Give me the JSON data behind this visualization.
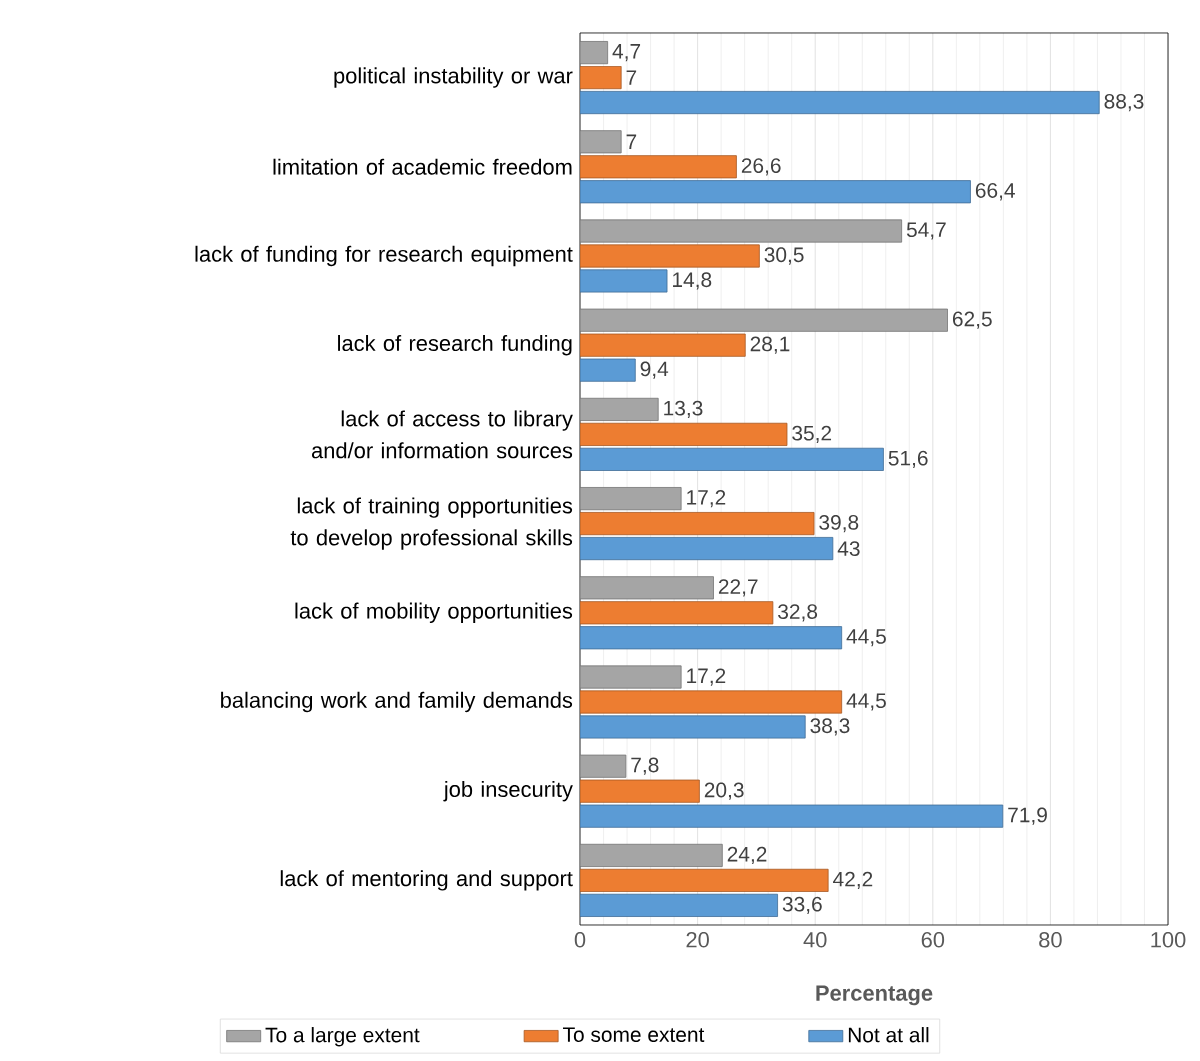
{
  "chart_data": {
    "type": "bar",
    "orientation": "horizontal",
    "categories": [
      "political instability or war",
      "limitation of academic freedom",
      "lack of funding for research equipment",
      "lack of research funding",
      "lack of access to library and/or information sources",
      "lack of training opportunities to develop professional skills",
      "lack of mobility opportunities",
      "balancing work and family demands",
      "job insecurity",
      "lack of mentoring and support"
    ],
    "series": [
      {
        "name": "To a large extent",
        "color": "#a5a5a5",
        "values": [
          4.7,
          7,
          54.7,
          62.5,
          13.3,
          17.2,
          22.7,
          17.2,
          7.8,
          24.2
        ],
        "value_labels": [
          "4,7",
          "7",
          "54,7",
          "62,5",
          "13,3",
          "17,2",
          "22,7",
          "17,2",
          "7,8",
          "24,2"
        ]
      },
      {
        "name": "To some extent",
        "color": "#ed7d31",
        "values": [
          7,
          26.6,
          30.5,
          28.1,
          35.2,
          39.8,
          32.8,
          44.5,
          20.3,
          42.2
        ],
        "value_labels": [
          "7",
          "26,6",
          "30,5",
          "28,1",
          "35,2",
          "39,8",
          "32,8",
          "44,5",
          "20,3",
          "42,2"
        ]
      },
      {
        "name": "Not at all",
        "color": "#5b9bd5",
        "values": [
          88.3,
          66.4,
          14.8,
          9.4,
          51.6,
          43,
          44.5,
          38.3,
          71.9,
          33.6
        ],
        "value_labels": [
          "88,3",
          "66,4",
          "14,8",
          "9,4",
          "51,6",
          "43",
          "44,5",
          "38,3",
          "71,9",
          "33,6"
        ]
      }
    ],
    "xlabel": "Percentage",
    "xlim": [
      0,
      100
    ],
    "xticks": [
      0,
      20,
      40,
      60,
      80,
      100
    ],
    "grid": "x",
    "legend": "bottom"
  }
}
